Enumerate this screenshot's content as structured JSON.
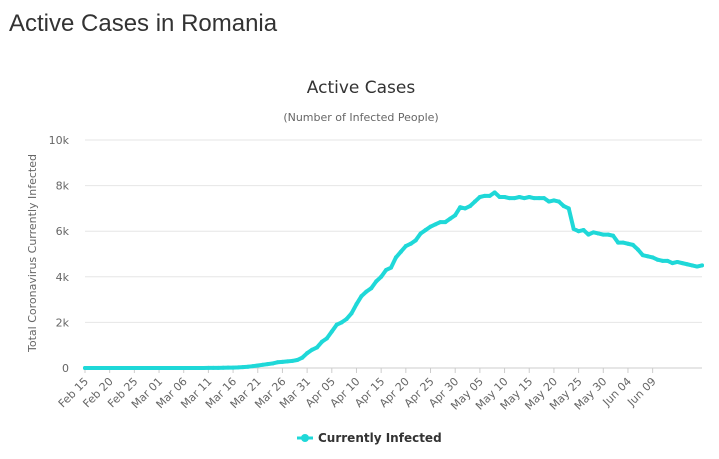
{
  "page": {
    "title": "Active Cases in Romania"
  },
  "chart_data": {
    "type": "line",
    "title": "Active Cases",
    "subtitle": "(Number of Infected People)",
    "ylabel": "Total Coronavirus Currently Infected",
    "xlabel": "",
    "ylim": [
      0,
      10000
    ],
    "y_ticks": [
      {
        "value": 0,
        "label": "0"
      },
      {
        "value": 2000,
        "label": "2k"
      },
      {
        "value": 4000,
        "label": "4k"
      },
      {
        "value": 6000,
        "label": "6k"
      },
      {
        "value": 8000,
        "label": "8k"
      },
      {
        "value": 10000,
        "label": "10k"
      }
    ],
    "x_ticks": [
      "Feb 15",
      "Feb 20",
      "Feb 25",
      "Mar 01",
      "Mar 06",
      "Mar 11",
      "Mar 16",
      "Mar 21",
      "Mar 26",
      "Mar 31",
      "Apr 05",
      "Apr 10",
      "Apr 15",
      "Apr 20",
      "Apr 25",
      "Apr 30",
      "May 05",
      "May 10",
      "May 15",
      "May 20",
      "May 25",
      "May 30",
      "Jun 04",
      "Jun 09"
    ],
    "grid": true,
    "legend_position": "bottom-center",
    "series": [
      {
        "name": "Currently Infected",
        "color": "#1fd8d8",
        "values": [
          0,
          0,
          0,
          0,
          0,
          0,
          0,
          0,
          0,
          0,
          0,
          0,
          0,
          0,
          0,
          0,
          0,
          0,
          0,
          0,
          0,
          0,
          0,
          0,
          2,
          4,
          5,
          8,
          10,
          14,
          18,
          25,
          40,
          55,
          80,
          110,
          140,
          170,
          200,
          250,
          270,
          290,
          310,
          350,
          450,
          650,
          800,
          900,
          1150,
          1300,
          1600,
          1900,
          2000,
          2150,
          2400,
          2800,
          3150,
          3350,
          3500,
          3800,
          4000,
          4300,
          4400,
          4850,
          5100,
          5350,
          5450,
          5600,
          5900,
          6050,
          6200,
          6300,
          6400,
          6400,
          6550,
          6700,
          7050,
          7000,
          7100,
          7300,
          7500,
          7550,
          7550,
          7700,
          7500,
          7500,
          7450,
          7450,
          7500,
          7450,
          7500,
          7450,
          7450,
          7450,
          7300,
          7350,
          7300,
          7100,
          7000,
          6100,
          6000,
          6050,
          5850,
          5950,
          5900,
          5850,
          5850,
          5800,
          5500,
          5500,
          5450,
          5400,
          5200,
          4950,
          4900,
          4850,
          4750,
          4700,
          4700,
          4600,
          4650,
          4600,
          4550,
          4500,
          4450,
          4500
        ]
      }
    ]
  }
}
